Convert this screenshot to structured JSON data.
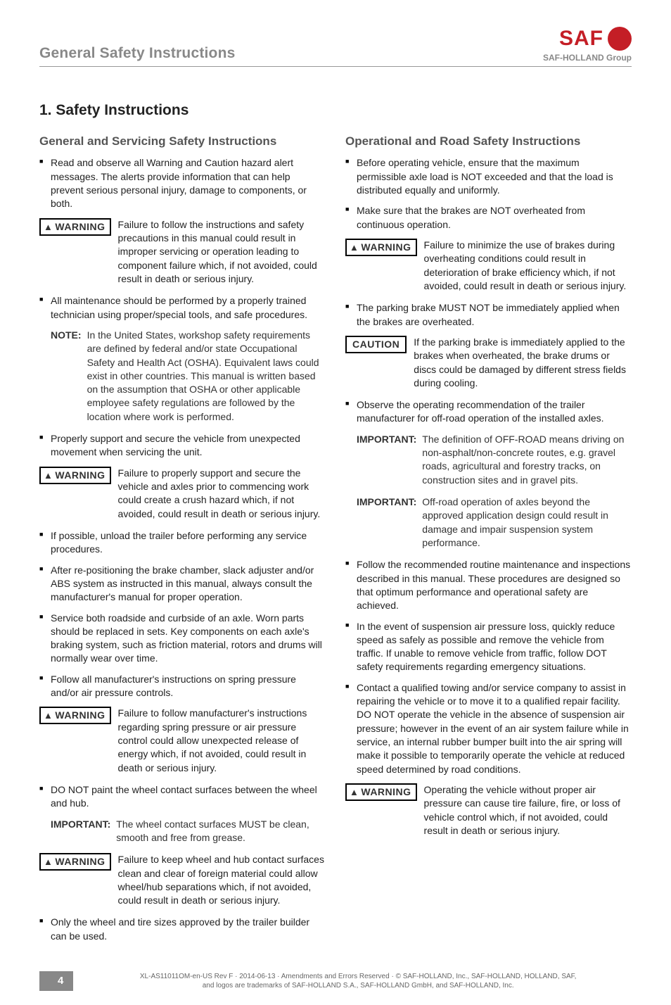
{
  "header": {
    "title": "General Safety Instructions",
    "logo_text": "SAF",
    "group_text": "SAF-HOLLAND Group",
    "brand_color": "#c41e26",
    "muted_color": "#888888"
  },
  "main": {
    "section_number_title": "1.  Safety Instructions",
    "left": {
      "subheading": "General and Servicing Safety Instructions",
      "b1": "Read and observe all Warning and Caution hazard alert messages. The alerts provide information that can help prevent serious personal injury, damage to components, or both.",
      "w1_label": "WARNING",
      "w1": "Failure to follow the instructions and safety precautions in this manual could result in improper servicing or operation leading to component failure which, if not avoided, could result in death or serious injury.",
      "b2": "All maintenance should be performed by a properly trained technician using proper/special tools, and safe procedures.",
      "note_label": "NOTE:",
      "note": "In the United States, workshop safety requirements are defined by federal and/or state Occupational Safety and Health Act (OSHA). Equivalent laws could exist in other countries. This manual is written based on the assumption that OSHA or other applicable employee safety regulations are followed by the location where work is performed.",
      "b3": "Properly support and secure the vehicle from unexpected movement when servicing the unit.",
      "w2_label": "WARNING",
      "w2": "Failure to properly support and secure the vehicle and axles prior to commencing work could create a crush hazard which, if not avoided, could result in death or serious injury.",
      "b4": "If possible, unload the trailer before performing any service procedures.",
      "b5": "After re-positioning the brake chamber, slack adjuster and/or ABS system as instructed in this manual, always consult the manufacturer's manual for proper operation.",
      "b6": "Service both roadside and curbside of an axle. Worn parts should be replaced in sets. Key components on each axle's braking system, such as friction material, rotors and drums will normally wear over time.",
      "b7": "Follow all manufacturer's instructions on spring pressure and/or air pressure controls.",
      "w3_label": "WARNING",
      "w3": "Failure to follow manufacturer's instructions regarding spring pressure or air pressure control could allow unexpected release of energy which, if not avoided, could result in death or serious injury.",
      "b8": "DO NOT paint the wheel contact surfaces between the wheel and hub.",
      "imp1_label": "IMPORTANT:",
      "imp1": "The wheel contact surfaces MUST be clean, smooth and free from grease.",
      "w4_label": "WARNING",
      "w4": "Failure to keep wheel and hub contact surfaces clean and clear of foreign material could allow wheel/hub separations which, if not avoided, could result in death or serious injury.",
      "b9": "Only the wheel and tire sizes approved by the trailer builder can be used."
    },
    "right": {
      "subheading": "Operational and Road Safety Instructions",
      "b1": "Before operating vehicle, ensure that the maximum permissible axle load is NOT exceeded and that the load is distributed equally and uniformly.",
      "b2": "Make sure that the brakes are NOT overheated from continuous operation.",
      "w1_label": "WARNING",
      "w1": "Failure to minimize the use of brakes during overheating conditions could result in deterioration of brake efficiency which, if not avoided, could result in death or serious injury.",
      "b3": "The parking brake MUST NOT be immediately applied when the brakes are overheated.",
      "c1_label": "CAUTION",
      "c1": "If the parking brake is immediately applied to the brakes when overheated, the brake drums or discs could be damaged by different stress fields during cooling.",
      "b4": "Observe the operating recommendation of the trailer manufacturer for off-road operation of the installed axles.",
      "imp1_label": "IMPORTANT:",
      "imp1": "The definition of OFF-ROAD means driving on non-asphalt/non-concrete routes, e.g. gravel roads, agricultural and forestry tracks, on construction sites and in gravel pits.",
      "imp2_label": "IMPORTANT:",
      "imp2": "Off-road operation of axles beyond the approved application design could result in damage and impair suspension system performance.",
      "b5": "Follow the recommended routine maintenance and inspections described in this manual. These procedures are designed so that optimum performance and operational safety are achieved.",
      "b6": "In the event of suspension air pressure loss, quickly reduce speed as safely as possible and remove the vehicle from traffic. If unable to remove vehicle from traffic, follow DOT safety requirements regarding emergency situations.",
      "b7": "Contact a qualified towing and/or service company to assist in repairing the vehicle or to move it to a qualified repair facility. DO NOT operate the vehicle in the absence of suspension air pressure; however in the event of an air system failure while in service, an internal rubber bumper built into the air spring will make it possible to temporarily operate the vehicle at reduced speed determined by road conditions.",
      "w2_label": "WARNING",
      "w2": "Operating the vehicle without proper air pressure can cause tire failure, fire, or loss of vehicle control which, if not avoided, could result in death or serious injury."
    }
  },
  "footer": {
    "page": "4",
    "line1": "XL-AS11011OM-en-US Rev F · 2014-06-13 · Amendments and Errors Reserved · © SAF-HOLLAND, Inc., SAF-HOLLAND, HOLLAND, SAF,",
    "line2": "and logos are trademarks of SAF-HOLLAND S.A., SAF-HOLLAND GmbH, and SAF-HOLLAND, Inc."
  }
}
